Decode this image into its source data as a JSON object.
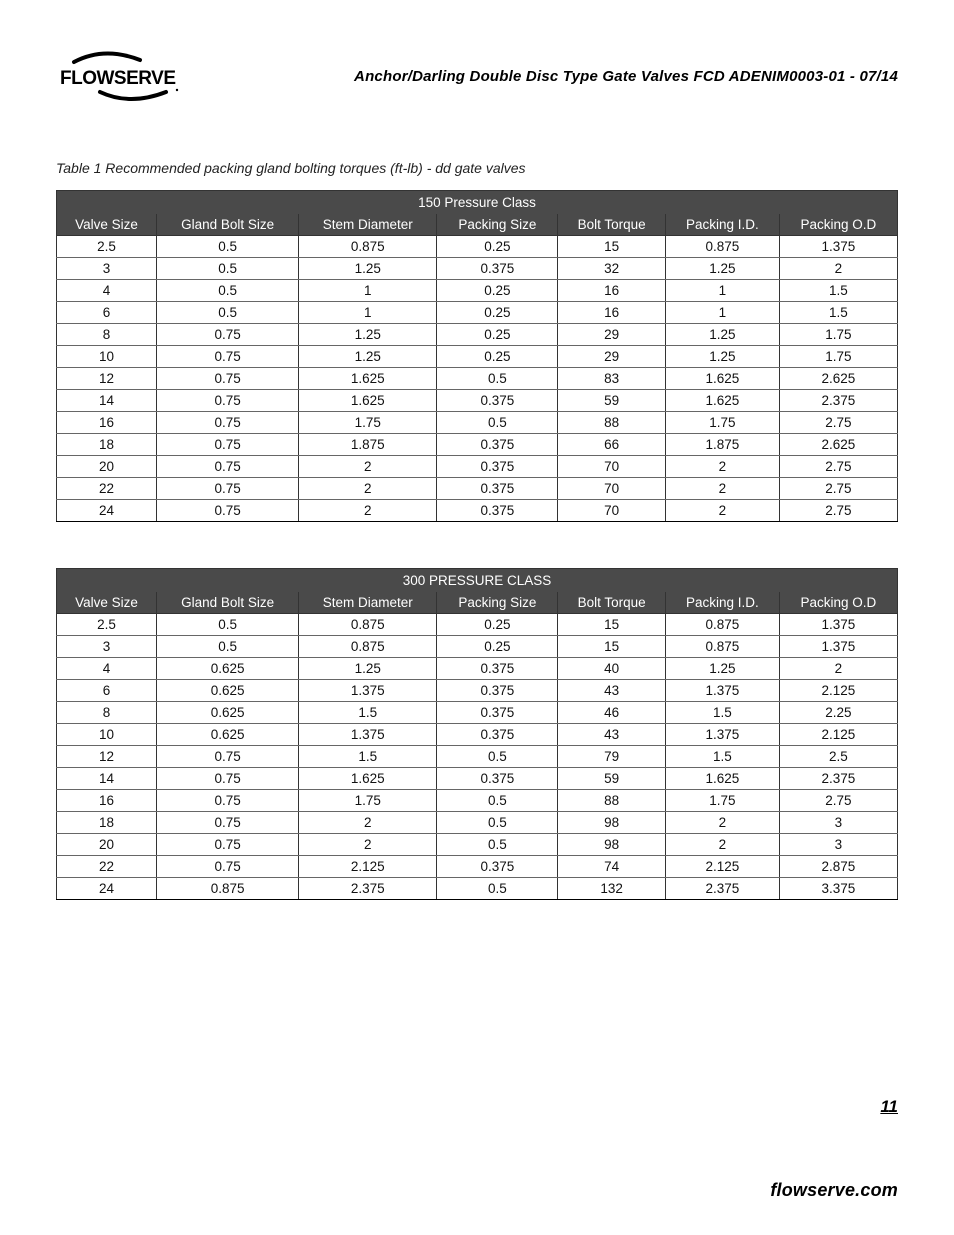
{
  "header": {
    "doc_title": "Anchor/Darling Double Disc Type Gate Valves  FCD ADENIM0003-01 - 07/14"
  },
  "caption": "Table 1 Recommended packing gland bolting torques (ft-lb) - dd gate valves",
  "columns": [
    "Valve Size",
    "Gland Bolt Size",
    "Stem Diameter",
    "Packing Size",
    "Bolt Torque",
    "Packing I.D.",
    "Packing O.D"
  ],
  "table1": {
    "title": "150 Pressure Class",
    "header_bg": "#4a4a4a",
    "header_fg": "#ffffff",
    "border_color": "#333333",
    "rows": [
      [
        "2.5",
        "0.5",
        "0.875",
        "0.25",
        "15",
        "0.875",
        "1.375"
      ],
      [
        "3",
        "0.5",
        "1.25",
        "0.375",
        "32",
        "1.25",
        "2"
      ],
      [
        "4",
        "0.5",
        "1",
        "0.25",
        "16",
        "1",
        "1.5"
      ],
      [
        "6",
        "0.5",
        "1",
        "0.25",
        "16",
        "1",
        "1.5"
      ],
      [
        "8",
        "0.75",
        "1.25",
        "0.25",
        "29",
        "1.25",
        "1.75"
      ],
      [
        "10",
        "0.75",
        "1.25",
        "0.25",
        "29",
        "1.25",
        "1.75"
      ],
      [
        "12",
        "0.75",
        "1.625",
        "0.5",
        "83",
        "1.625",
        "2.625"
      ],
      [
        "14",
        "0.75",
        "1.625",
        "0.375",
        "59",
        "1.625",
        "2.375"
      ],
      [
        "16",
        "0.75",
        "1.75",
        "0.5",
        "88",
        "1.75",
        "2.75"
      ],
      [
        "18",
        "0.75",
        "1.875",
        "0.375",
        "66",
        "1.875",
        "2.625"
      ],
      [
        "20",
        "0.75",
        "2",
        "0.375",
        "70",
        "2",
        "2.75"
      ],
      [
        "22",
        "0.75",
        "2",
        "0.375",
        "70",
        "2",
        "2.75"
      ],
      [
        "24",
        "0.75",
        "2",
        "0.375",
        "70",
        "2",
        "2.75"
      ]
    ]
  },
  "table2": {
    "title": "300 PRESSURE CLASS",
    "header_bg": "#4a4a4a",
    "header_fg": "#ffffff",
    "border_color": "#333333",
    "rows": [
      [
        "2.5",
        "0.5",
        "0.875",
        "0.25",
        "15",
        "0.875",
        "1.375"
      ],
      [
        "3",
        "0.5",
        "0.875",
        "0.25",
        "15",
        "0.875",
        "1.375"
      ],
      [
        "4",
        "0.625",
        "1.25",
        "0.375",
        "40",
        "1.25",
        "2"
      ],
      [
        "6",
        "0.625",
        "1.375",
        "0.375",
        "43",
        "1.375",
        "2.125"
      ],
      [
        "8",
        "0.625",
        "1.5",
        "0.375",
        "46",
        "1.5",
        "2.25"
      ],
      [
        "10",
        "0.625",
        "1.375",
        "0.375",
        "43",
        "1.375",
        "2.125"
      ],
      [
        "12",
        "0.75",
        "1.5",
        "0.5",
        "79",
        "1.5",
        "2.5"
      ],
      [
        "14",
        "0.75",
        "1.625",
        "0.375",
        "59",
        "1.625",
        "2.375"
      ],
      [
        "16",
        "0.75",
        "1.75",
        "0.5",
        "88",
        "1.75",
        "2.75"
      ],
      [
        "18",
        "0.75",
        "2",
        "0.5",
        "98",
        "2",
        "3"
      ],
      [
        "20",
        "0.75",
        "2",
        "0.5",
        "98",
        "2",
        "3"
      ],
      [
        "22",
        "0.75",
        "2.125",
        "0.375",
        "74",
        "2.125",
        "2.875"
      ],
      [
        "24",
        "0.875",
        "2.375",
        "0.5",
        "132",
        "2.375",
        "3.375"
      ]
    ]
  },
  "page_number": "11",
  "footer_url": "flowserve.com",
  "logo": {
    "text": "FLOWSERVE",
    "color": "#000000"
  }
}
